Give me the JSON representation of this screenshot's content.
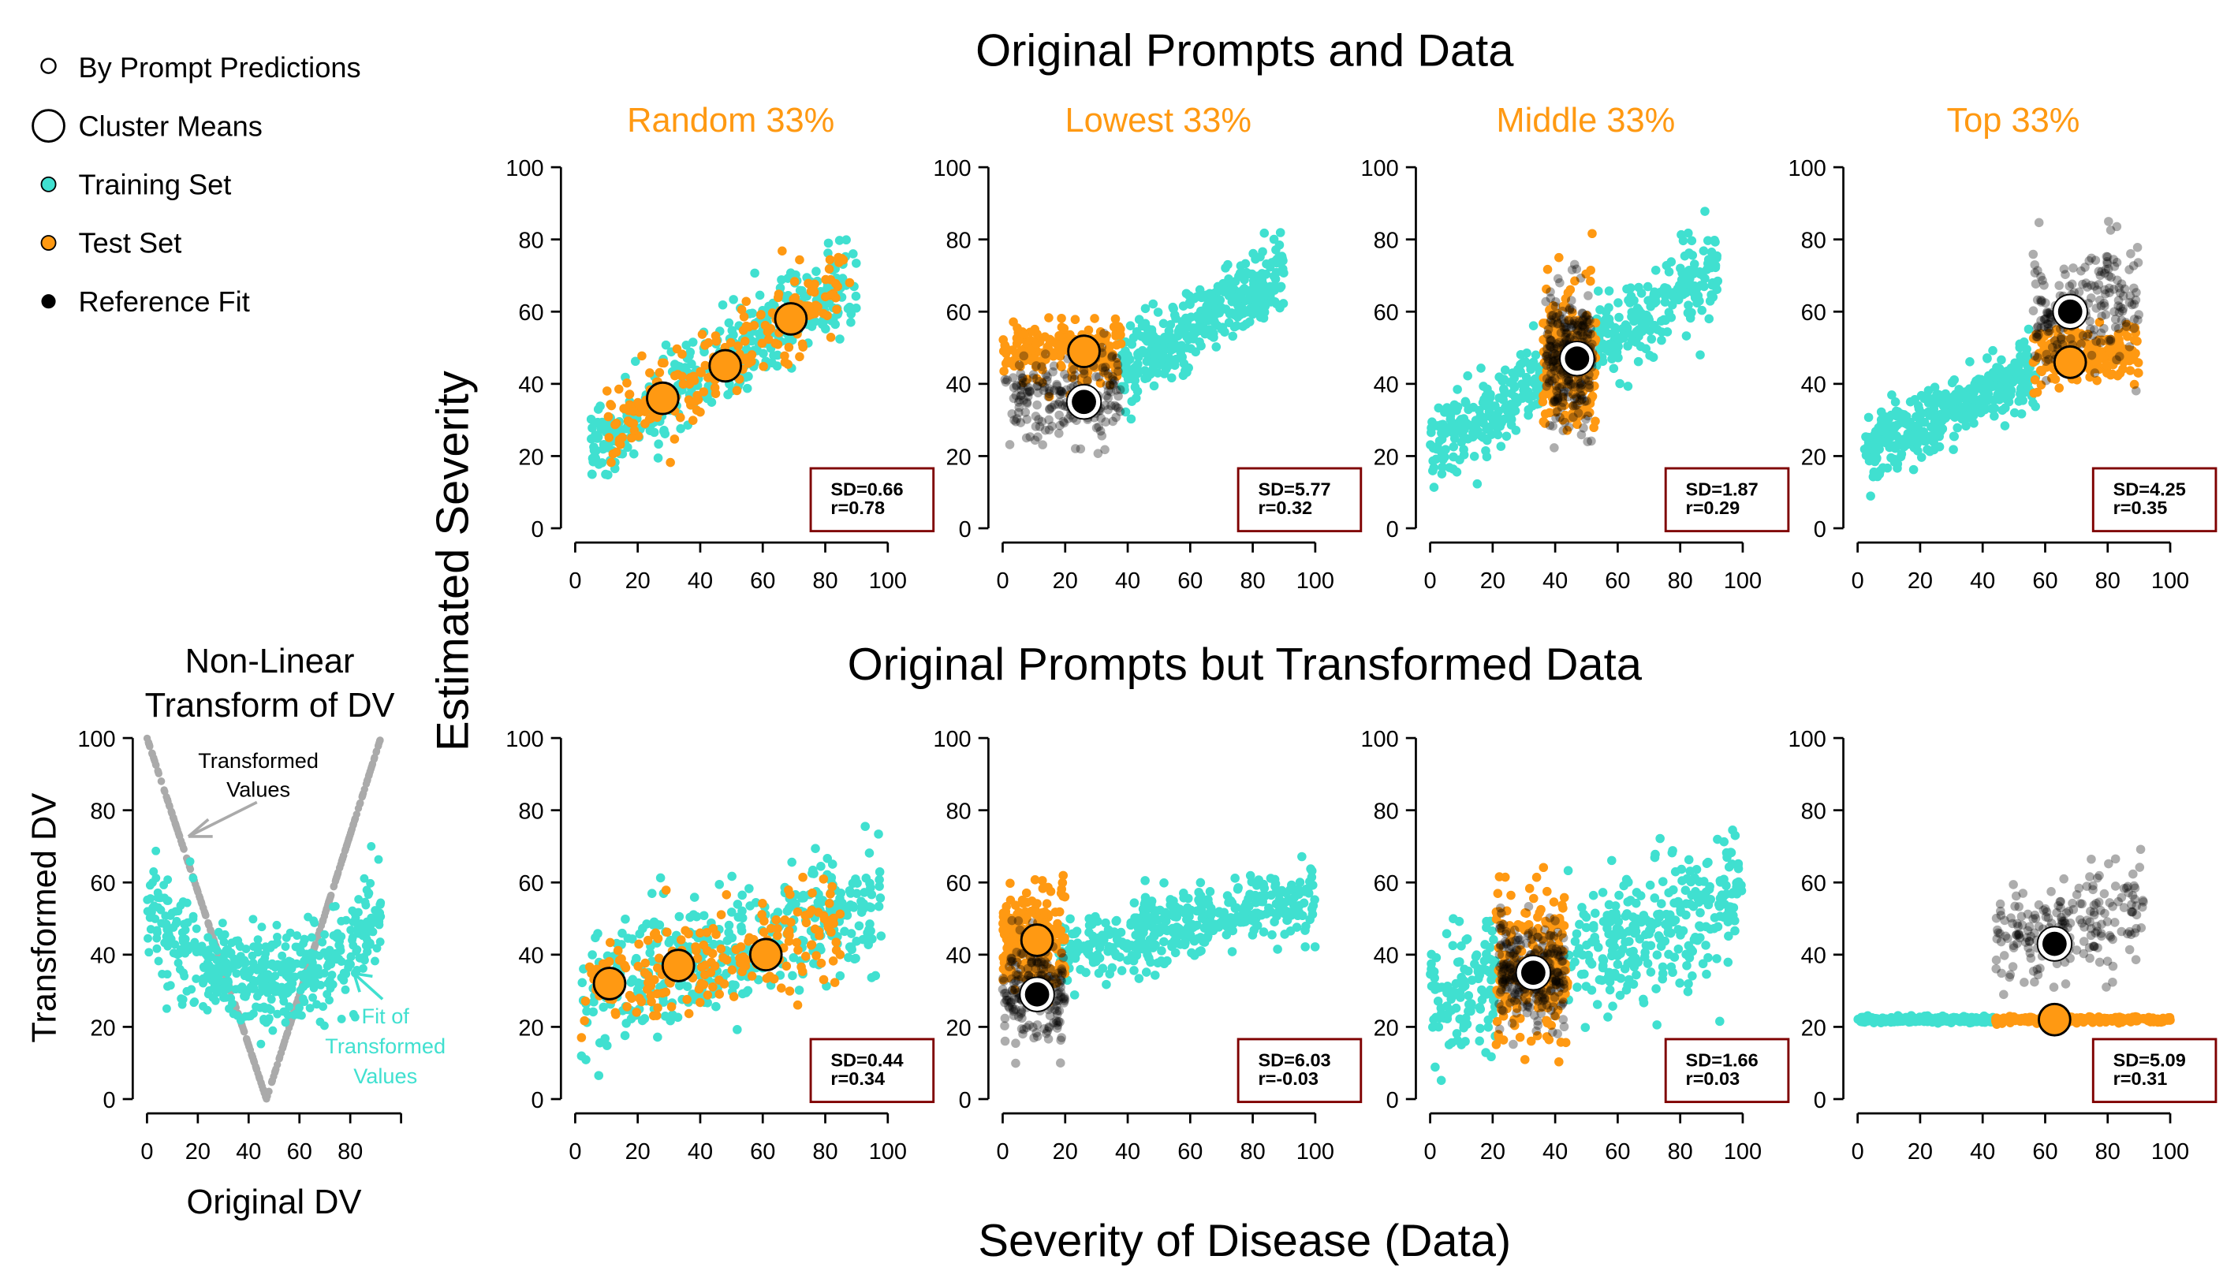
{
  "colors": {
    "training": "#40E0D0",
    "test": "#FF9912",
    "reference": "#000000",
    "title_orange": "#FF9912",
    "stat_border": "#7F0000",
    "transform_gray": "#AAAAAA"
  },
  "legend": [
    {
      "label": "By Prompt Predictions",
      "marker": "small-open-circle"
    },
    {
      "label": "Cluster Means",
      "marker": "large-open-circle"
    },
    {
      "label": "Training Set",
      "marker": "teal-dot"
    },
    {
      "label": "Test Set",
      "marker": "orange-dot"
    },
    {
      "label": "Reference Fit",
      "marker": "black-dot"
    }
  ],
  "titles": {
    "top_row": "Original Prompts and Data",
    "bottom_row": "Original Prompts but Transformed Data",
    "y_label": "Estimated Severity",
    "x_label": "Severity of Disease (Data)"
  },
  "inset": {
    "title_line1": "Non-Linear",
    "title_line2": "Transform of DV",
    "y_label": "Transformed DV",
    "x_label": "Original DV",
    "annotation_transformed_1": "Transformed",
    "annotation_transformed_2": "Values",
    "annotation_fit_1": "Fit of",
    "annotation_fit_2": "Transformed",
    "annotation_fit_3": "Values"
  },
  "chart_data": {
    "type": "scatter",
    "axes": {
      "xlim": [
        0,
        100
      ],
      "ylim": [
        0,
        100
      ],
      "ticks": [
        "0",
        "20",
        "40",
        "60",
        "80",
        "100"
      ],
      "inset_x_ticks": [
        "0",
        "20",
        "40",
        "60",
        "80",
        ""
      ]
    },
    "inset": {
      "transformed_values": {
        "x_range": [
          0,
          92
        ],
        "vertex": [
          47,
          0
        ],
        "y_at_ends": 100
      },
      "fit_of_transformed": {
        "x_range": [
          0,
          92
        ],
        "center": 47,
        "min_y": 33,
        "curvature": 0.009,
        "noise": 7,
        "n": 500
      }
    },
    "panels": [
      {
        "row": "top",
        "col": 0,
        "title": "Random 33%",
        "sd": "SD=0.66",
        "r": "r=0.78",
        "groups": [
          {
            "set": "training",
            "x": [
              [
                5,
                90
              ]
            ],
            "intercept": 20,
            "slope": 0.55,
            "noise": 6,
            "n": 420
          },
          {
            "set": "test",
            "x": [
              [
                10,
                88
              ]
            ],
            "intercept": 20,
            "slope": 0.55,
            "noise": 6,
            "n": 200
          }
        ],
        "means": [
          {
            "set": "test",
            "x": 28,
            "y": 36
          },
          {
            "set": "test",
            "x": 48,
            "y": 45
          },
          {
            "set": "test",
            "x": 69,
            "y": 58
          }
        ]
      },
      {
        "row": "top",
        "col": 1,
        "title": "Lowest 33%",
        "sd": "SD=5.77",
        "r": "r=0.32",
        "groups": [
          {
            "set": "training",
            "x": [
              [
                38,
                90
              ]
            ],
            "intercept": 24,
            "slope": 0.52,
            "noise": 5,
            "n": 400
          },
          {
            "set": "test",
            "x": [
              [
                0,
                38
              ]
            ],
            "intercept": 49,
            "slope": 0,
            "noise": 4.5,
            "n": 200
          },
          {
            "set": "reference",
            "x": [
              [
                0,
                38
              ]
            ],
            "intercept": 35,
            "slope": 0.05,
            "noise": 7,
            "n": 200
          }
        ],
        "means": [
          {
            "set": "test",
            "x": 26,
            "y": 49
          },
          {
            "set": "reference",
            "x": 26,
            "y": 35
          }
        ]
      },
      {
        "row": "top",
        "col": 2,
        "title": "Middle 33%",
        "sd": "SD=1.87",
        "r": "r=0.29",
        "groups": [
          {
            "set": "training",
            "x": [
              [
                0,
                36
              ],
              [
                53,
                92
              ]
            ],
            "intercept": 22,
            "slope": 0.55,
            "noise": 6,
            "n": 420
          },
          {
            "set": "test",
            "x": [
              [
                36,
                53
              ]
            ],
            "intercept": 47,
            "slope": 0,
            "noise": 10,
            "n": 220
          },
          {
            "set": "reference",
            "x": [
              [
                37,
                52
              ]
            ],
            "intercept": 47,
            "slope": 0,
            "noise": 9,
            "n": 260
          }
        ],
        "means": [
          {
            "set": "reference",
            "x": 47,
            "y": 47
          }
        ]
      },
      {
        "row": "top",
        "col": 3,
        "title": "Top 33%",
        "sd": "SD=4.25",
        "r": "r=0.35",
        "groups": [
          {
            "set": "training",
            "x": [
              [
                2,
                57
              ]
            ],
            "intercept": 21,
            "slope": 0.4,
            "noise": 4.5,
            "n": 420
          },
          {
            "set": "test",
            "x": [
              [
                56,
                90
              ]
            ],
            "intercept": 46,
            "slope": 0.03,
            "noise": 4,
            "n": 200
          },
          {
            "set": "reference",
            "x": [
              [
                56,
                90
              ]
            ],
            "intercept": 50,
            "slope": 0.15,
            "noise": 8,
            "n": 200
          }
        ],
        "means": [
          {
            "set": "reference",
            "x": 68,
            "y": 60
          },
          {
            "set": "test",
            "x": 68,
            "y": 46
          }
        ]
      },
      {
        "row": "bottom",
        "col": 0,
        "title": "",
        "sd": "SD=0.44",
        "r": "r=0.34",
        "groups": [
          {
            "set": "training",
            "x": [
              [
                2,
                98
              ]
            ],
            "intercept": 28,
            "slope": 0.27,
            "noise": 8,
            "n": 420
          },
          {
            "set": "test",
            "x": [
              [
                2,
                85
              ]
            ],
            "intercept": 30,
            "slope": 0.18,
            "noise": 7,
            "n": 200
          }
        ],
        "means": [
          {
            "set": "test",
            "x": 11,
            "y": 32
          },
          {
            "set": "test",
            "x": 33,
            "y": 37
          },
          {
            "set": "test",
            "x": 61,
            "y": 40
          }
        ]
      },
      {
        "row": "bottom",
        "col": 1,
        "title": "",
        "sd": "SD=6.03",
        "r": "r=-0.03",
        "groups": [
          {
            "set": "training",
            "x": [
              [
                18,
                100
              ]
            ],
            "intercept": 37,
            "slope": 0.2,
            "noise": 5,
            "n": 420
          },
          {
            "set": "test",
            "x": [
              [
                0,
                20
              ]
            ],
            "intercept": 44,
            "slope": 0,
            "noise": 7,
            "n": 220
          },
          {
            "set": "reference",
            "x": [
              [
                0,
                20
              ]
            ],
            "intercept": 30,
            "slope": 0,
            "noise": 8,
            "n": 200
          }
        ],
        "means": [
          {
            "set": "test",
            "x": 11,
            "y": 44
          },
          {
            "set": "reference",
            "x": 11,
            "y": 29
          }
        ]
      },
      {
        "row": "bottom",
        "col": 2,
        "title": "",
        "sd": "SD=1.66",
        "r": "r=0.03",
        "groups": [
          {
            "set": "training",
            "x": [
              [
                0,
                21
              ],
              [
                44,
                100
              ]
            ],
            "intercept": 26,
            "slope": 0.3,
            "noise": 9,
            "n": 420
          },
          {
            "set": "test",
            "x": [
              [
                21,
                44
              ]
            ],
            "intercept": 36,
            "slope": 0,
            "noise": 10,
            "n": 220
          },
          {
            "set": "reference",
            "x": [
              [
                22,
                43
              ]
            ],
            "intercept": 35,
            "slope": 0,
            "noise": 7,
            "n": 260
          }
        ],
        "means": [
          {
            "set": "reference",
            "x": 33,
            "y": 35
          }
        ]
      },
      {
        "row": "bottom",
        "col": 3,
        "title": "",
        "sd": "SD=5.09",
        "r": "r=0.31",
        "groups": [
          {
            "set": "training",
            "x": [
              [
                0,
                44
              ]
            ],
            "intercept": 22,
            "slope": 0,
            "noise": 0.4,
            "n": 300
          },
          {
            "set": "test",
            "x": [
              [
                44,
                100
              ]
            ],
            "intercept": 22,
            "slope": 0,
            "noise": 0.4,
            "n": 300
          },
          {
            "set": "reference",
            "x": [
              [
                44,
                92
              ]
            ],
            "intercept": 36,
            "slope": 0.18,
            "noise": 7,
            "n": 200
          }
        ],
        "means": [
          {
            "set": "reference",
            "x": 63,
            "y": 43
          },
          {
            "set": "test",
            "x": 63,
            "y": 22
          }
        ]
      }
    ]
  }
}
